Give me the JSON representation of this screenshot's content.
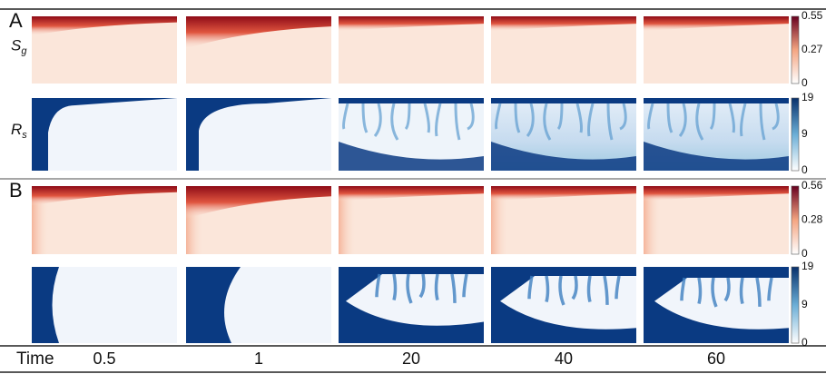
{
  "panels": [
    {
      "label": "A",
      "rows": [
        {
          "label": {
            "symbol": "S",
            "subscript": "g"
          },
          "colormap": "red",
          "colorbar_ticks": [
            0.55,
            0.27,
            0
          ]
        },
        {
          "label": {
            "symbol": "R",
            "subscript": "s"
          },
          "colormap": "blue",
          "colorbar_ticks": [
            19,
            9,
            0
          ]
        }
      ]
    },
    {
      "label": "B",
      "rows": [
        {
          "colormap": "red",
          "colorbar_ticks": [
            0.56,
            0.28,
            0
          ]
        },
        {
          "colormap": "blue",
          "colorbar_ticks": [
            19,
            9,
            0
          ]
        }
      ]
    }
  ],
  "time": {
    "label": "Time",
    "values": [
      0.5,
      1,
      20,
      40,
      60
    ]
  }
}
